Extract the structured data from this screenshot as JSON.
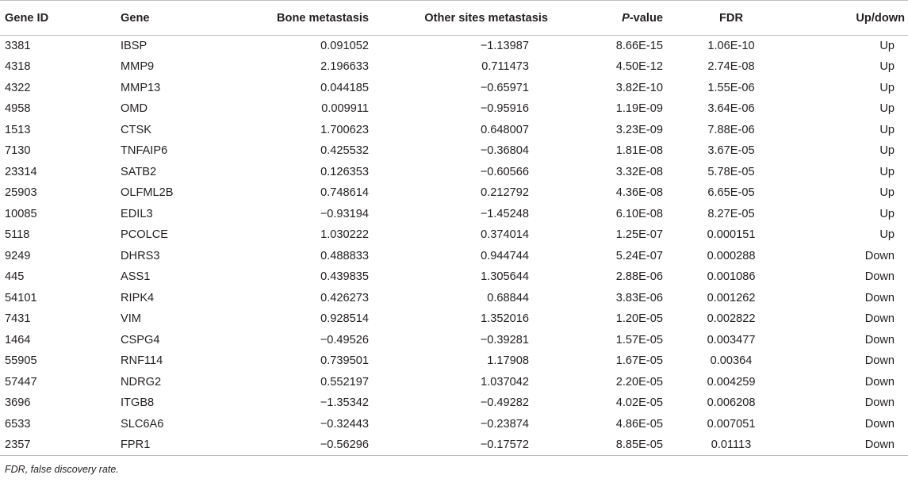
{
  "table": {
    "headers": {
      "gene_id": "Gene ID",
      "gene": "Gene",
      "bone": "Bone metastasis",
      "other": "Other sites metastasis",
      "p_italic": "P",
      "p_rest": "-value",
      "fdr": "FDR",
      "updown": "Up/down"
    },
    "rows": [
      [
        "3381",
        "IBSP",
        "0.091052",
        "−1.13987",
        "8.66E-15",
        "1.06E-10",
        "Up"
      ],
      [
        "4318",
        "MMP9",
        "2.196633",
        "0.711473",
        "4.50E-12",
        "2.74E-08",
        "Up"
      ],
      [
        "4322",
        "MMP13",
        "0.044185",
        "−0.65971",
        "3.82E-10",
        "1.55E-06",
        "Up"
      ],
      [
        "4958",
        "OMD",
        "0.009911",
        "−0.95916",
        "1.19E-09",
        "3.64E-06",
        "Up"
      ],
      [
        "1513",
        "CTSK",
        "1.700623",
        "0.648007",
        "3.23E-09",
        "7.88E-06",
        "Up"
      ],
      [
        "7130",
        "TNFAIP6",
        "0.425532",
        "−0.36804",
        "1.81E-08",
        "3.67E-05",
        "Up"
      ],
      [
        "23314",
        "SATB2",
        "0.126353",
        "−0.60566",
        "3.32E-08",
        "5.78E-05",
        "Up"
      ],
      [
        "25903",
        "OLFML2B",
        "0.748614",
        "0.212792",
        "4.36E-08",
        "6.65E-05",
        "Up"
      ],
      [
        "10085",
        "EDIL3",
        "−0.93194",
        "−1.45248",
        "6.10E-08",
        "8.27E-05",
        "Up"
      ],
      [
        "5118",
        "PCOLCE",
        "1.030222",
        "0.374014",
        "1.25E-07",
        "0.000151",
        "Up"
      ],
      [
        "9249",
        "DHRS3",
        "0.488833",
        "0.944744",
        "5.24E-07",
        "0.000288",
        "Down"
      ],
      [
        "445",
        "ASS1",
        "0.439835",
        "1.305644",
        "2.88E-06",
        "0.001086",
        "Down"
      ],
      [
        "54101",
        "RIPK4",
        "0.426273",
        "0.68844",
        "3.83E-06",
        "0.001262",
        "Down"
      ],
      [
        "7431",
        "VIM",
        "0.928514",
        "1.352016",
        "1.20E-05",
        "0.002822",
        "Down"
      ],
      [
        "1464",
        "CSPG4",
        "−0.49526",
        "−0.39281",
        "1.57E-05",
        "0.003477",
        "Down"
      ],
      [
        "55905",
        "RNF114",
        "0.739501",
        "1.17908",
        "1.67E-05",
        "0.00364",
        "Down"
      ],
      [
        "57447",
        "NDRG2",
        "0.552197",
        "1.037042",
        "2.20E-05",
        "0.004259",
        "Down"
      ],
      [
        "3696",
        "ITGB8",
        "−1.35342",
        "−0.49282",
        "4.02E-05",
        "0.006208",
        "Down"
      ],
      [
        "6533",
        "SLC6A6",
        "−0.32443",
        "−0.23874",
        "4.86E-05",
        "0.007051",
        "Down"
      ],
      [
        "2357",
        "FPR1",
        "−0.56296",
        "−0.17572",
        "8.85E-05",
        "0.01113",
        "Down"
      ]
    ]
  },
  "footnote": "FDR, false discovery rate."
}
